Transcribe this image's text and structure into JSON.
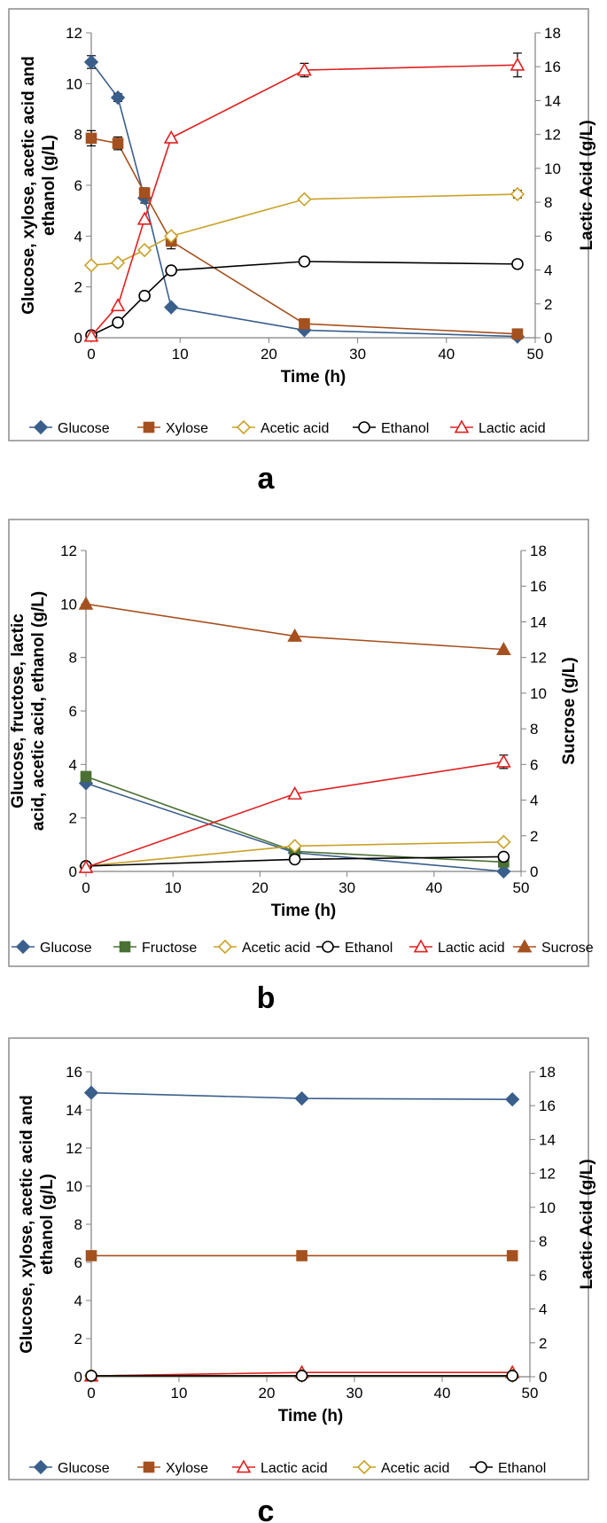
{
  "colors": {
    "glucose": "#3A5F8C",
    "xylose": "#A5511F",
    "fructose": "#4A7034",
    "acetic": "#C9A227",
    "ethanol": "#000000",
    "lactic": "#E02020",
    "sucrose": "#A5511F",
    "frame": "#8C8C8C"
  },
  "chart_data": [
    {
      "type": "line",
      "panel_label": "a",
      "xlabel": "Time (h)",
      "ylabel_left": [
        "Glucose, xylose, acetic acid and",
        "ethanol (g/L)"
      ],
      "ylabel_right": "Lactic Acid  (g/L)",
      "xlim": [
        0,
        50
      ],
      "xticks": [
        0,
        10,
        20,
        30,
        40,
        50
      ],
      "ylim_left": [
        0,
        12
      ],
      "yticks_left": [
        0,
        2,
        4,
        6,
        8,
        10,
        12
      ],
      "ylim_right": [
        0,
        18
      ],
      "yticks_right": [
        0,
        2,
        4,
        6,
        8,
        10,
        12,
        14,
        16,
        18
      ],
      "series": [
        {
          "name": "Glucose",
          "axis": "left",
          "marker": "diamond",
          "filled": true,
          "color_key": "glucose",
          "x": [
            0,
            3,
            6,
            9,
            24,
            48
          ],
          "values": [
            10.85,
            9.45,
            5.5,
            1.2,
            0.3,
            0.05
          ],
          "err": [
            0.25,
            0.15,
            0.2,
            0,
            0,
            0
          ]
        },
        {
          "name": "Xylose",
          "axis": "left",
          "marker": "square",
          "filled": true,
          "color_key": "xylose",
          "x": [
            0,
            3,
            6,
            9,
            24,
            48
          ],
          "values": [
            7.85,
            7.65,
            5.7,
            3.8,
            0.55,
            0.15
          ],
          "err": [
            0.3,
            0.25,
            0.2,
            0.3,
            0,
            0
          ]
        },
        {
          "name": "Acetic acid",
          "axis": "left",
          "marker": "diamond",
          "filled": false,
          "color_key": "acetic",
          "x": [
            0,
            3,
            6,
            9,
            24,
            48
          ],
          "values": [
            2.85,
            2.95,
            3.45,
            4.0,
            5.45,
            5.65
          ],
          "err": [
            0,
            0,
            0,
            0,
            0,
            0.15
          ]
        },
        {
          "name": "Ethanol",
          "axis": "left",
          "marker": "circle",
          "filled": false,
          "color_key": "ethanol",
          "x": [
            0,
            3,
            6,
            9,
            24,
            48
          ],
          "values": [
            0.1,
            0.6,
            1.65,
            2.65,
            3.0,
            2.9
          ],
          "err": [
            0,
            0,
            0,
            0,
            0,
            0
          ]
        },
        {
          "name": "Lactic acid",
          "axis": "right",
          "marker": "triangle",
          "filled": false,
          "color_key": "lactic",
          "x": [
            0,
            3,
            6,
            9,
            24,
            48
          ],
          "values": [
            0.1,
            1.9,
            7.0,
            11.8,
            15.8,
            16.1
          ],
          "err": [
            0,
            0,
            0,
            0,
            0.4,
            0.7
          ]
        }
      ]
    },
    {
      "type": "line",
      "panel_label": "b",
      "xlabel": "Time (h)",
      "ylabel_left": [
        "Glucose, fructose, lactic",
        "acid, acetic acid, ethanol (g/L)"
      ],
      "ylabel_right": "Sucrose (g/L)",
      "xlim": [
        0,
        50
      ],
      "xticks": [
        0,
        10,
        20,
        30,
        40,
        50
      ],
      "ylim_left": [
        0,
        12
      ],
      "yticks_left": [
        0,
        2,
        4,
        6,
        8,
        10,
        12
      ],
      "ylim_right": [
        0,
        18
      ],
      "yticks_right": [
        0,
        2,
        4,
        6,
        8,
        10,
        12,
        14,
        16,
        18
      ],
      "series": [
        {
          "name": "Glucose",
          "axis": "left",
          "marker": "diamond",
          "filled": true,
          "color_key": "glucose",
          "x": [
            0,
            24,
            48
          ],
          "values": [
            3.3,
            0.7,
            0.0
          ],
          "err": [
            0,
            0,
            0
          ]
        },
        {
          "name": "Fructose",
          "axis": "left",
          "marker": "square",
          "filled": true,
          "color_key": "fructose",
          "x": [
            0,
            24,
            48
          ],
          "values": [
            3.55,
            0.75,
            0.35
          ],
          "err": [
            0,
            0,
            0
          ]
        },
        {
          "name": "Acetic acid",
          "axis": "left",
          "marker": "diamond",
          "filled": false,
          "color_key": "acetic",
          "x": [
            0,
            24,
            48
          ],
          "values": [
            0.2,
            0.95,
            1.1
          ],
          "err": [
            0,
            0,
            0
          ]
        },
        {
          "name": "Ethanol",
          "axis": "left",
          "marker": "circle",
          "filled": false,
          "color_key": "ethanol",
          "x": [
            0,
            24,
            48
          ],
          "values": [
            0.2,
            0.45,
            0.55
          ],
          "err": [
            0,
            0,
            0
          ]
        },
        {
          "name": "Lactic acid",
          "axis": "left",
          "marker": "triangle",
          "filled": false,
          "color_key": "lactic",
          "x": [
            0,
            24,
            48
          ],
          "values": [
            0.15,
            2.9,
            4.1
          ],
          "err": [
            0,
            0,
            0.25
          ]
        },
        {
          "name": "Sucrose",
          "axis": "right",
          "marker": "triangle",
          "filled": true,
          "color_key": "sucrose",
          "x": [
            0,
            24,
            48
          ],
          "values": [
            15.0,
            13.2,
            12.45
          ],
          "err": [
            0,
            0,
            0
          ]
        }
      ]
    },
    {
      "type": "line",
      "panel_label": "c",
      "xlabel": "Time (h)",
      "ylabel_left": [
        "Glucose, xylose, acetic acid and",
        "ethanol (g/L)"
      ],
      "ylabel_right": "Lactic Acid  (g/L)",
      "xlim": [
        0,
        50
      ],
      "xticks": [
        0,
        10,
        20,
        30,
        40,
        50
      ],
      "ylim_left": [
        0,
        16
      ],
      "yticks_left": [
        0,
        2,
        4,
        6,
        8,
        10,
        12,
        14,
        16
      ],
      "ylim_right": [
        0,
        18
      ],
      "yticks_right": [
        0,
        2,
        4,
        6,
        8,
        10,
        12,
        14,
        16,
        18
      ],
      "series": [
        {
          "name": "Glucose",
          "axis": "left",
          "marker": "diamond",
          "filled": true,
          "color_key": "glucose",
          "x": [
            0,
            24,
            48
          ],
          "values": [
            14.9,
            14.6,
            14.55
          ],
          "err": [
            0,
            0,
            0
          ]
        },
        {
          "name": "Xylose",
          "axis": "left",
          "marker": "square",
          "filled": true,
          "color_key": "xylose",
          "x": [
            0,
            24,
            48
          ],
          "values": [
            6.35,
            6.35,
            6.35
          ],
          "err": [
            0,
            0,
            0
          ]
        },
        {
          "name": "Lactic acid",
          "axis": "right",
          "marker": "triangle",
          "filled": false,
          "color_key": "lactic",
          "x": [
            0,
            24,
            48
          ],
          "values": [
            0.05,
            0.25,
            0.25
          ],
          "err": [
            0,
            0,
            0
          ]
        },
        {
          "name": "Acetic acid",
          "axis": "left",
          "marker": "diamond",
          "filled": false,
          "color_key": "acetic",
          "x": [
            0,
            24,
            48
          ],
          "values": [
            0.05,
            0.05,
            0.05
          ],
          "err": [
            0,
            0,
            0
          ]
        },
        {
          "name": "Ethanol",
          "axis": "left",
          "marker": "circle",
          "filled": false,
          "color_key": "ethanol",
          "x": [
            0,
            24,
            48
          ],
          "values": [
            0.05,
            0.05,
            0.05
          ],
          "err": [
            0,
            0,
            0
          ]
        }
      ]
    }
  ]
}
